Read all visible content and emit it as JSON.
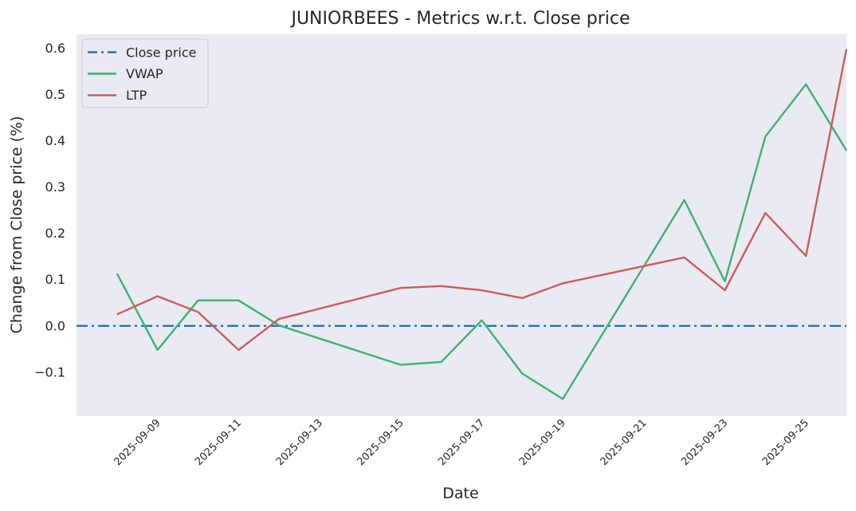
{
  "chart_data": {
    "type": "line",
    "title": "JUNIORBEES - Metrics w.r.t. Close price",
    "xlabel": "Date",
    "ylabel": "Change from Close price (%)",
    "x": [
      "2025-09-08",
      "2025-09-09",
      "2025-09-10",
      "2025-09-11",
      "2025-09-12",
      "2025-09-15",
      "2025-09-16",
      "2025-09-17",
      "2025-09-18",
      "2025-09-19",
      "2025-09-22",
      "2025-09-23",
      "2025-09-24",
      "2025-09-25",
      "2025-09-26"
    ],
    "x_ticks": [
      "2025-09-09",
      "2025-09-11",
      "2025-09-13",
      "2025-09-15",
      "2025-09-17",
      "2025-09-19",
      "2025-09-21",
      "2025-09-23",
      "2025-09-25"
    ],
    "y_ticks": [
      "0.6",
      "0.5",
      "0.4",
      "0.3",
      "0.2",
      "0.1",
      "0.0",
      "−0.1"
    ],
    "ylim": [
      -0.195,
      0.63
    ],
    "xlim": [
      "2025-09-07",
      "2025-09-26"
    ],
    "grid": false,
    "legend_position": "top-left",
    "background_color": "#eaeaf2",
    "series": [
      {
        "name": "Close price",
        "color": "#1f77b4",
        "style": "dashdot",
        "values": [
          0,
          0,
          0,
          0,
          0,
          0,
          0,
          0,
          0,
          0,
          0,
          0,
          0,
          0,
          0
        ]
      },
      {
        "name": "VWAP",
        "color": "#3cb371",
        "style": "solid",
        "values": [
          0.113,
          -0.052,
          0.055,
          0.055,
          0.001,
          -0.084,
          -0.078,
          0.012,
          -0.103,
          -0.158,
          0.272,
          0.096,
          0.409,
          0.522,
          0.379
        ]
      },
      {
        "name": "LTP",
        "color": "#cd5c5c",
        "style": "solid",
        "values": [
          0.025,
          0.064,
          0.03,
          -0.052,
          0.015,
          0.082,
          0.086,
          0.077,
          0.06,
          0.092,
          0.148,
          0.077,
          0.244,
          0.151,
          0.598
        ]
      }
    ]
  }
}
